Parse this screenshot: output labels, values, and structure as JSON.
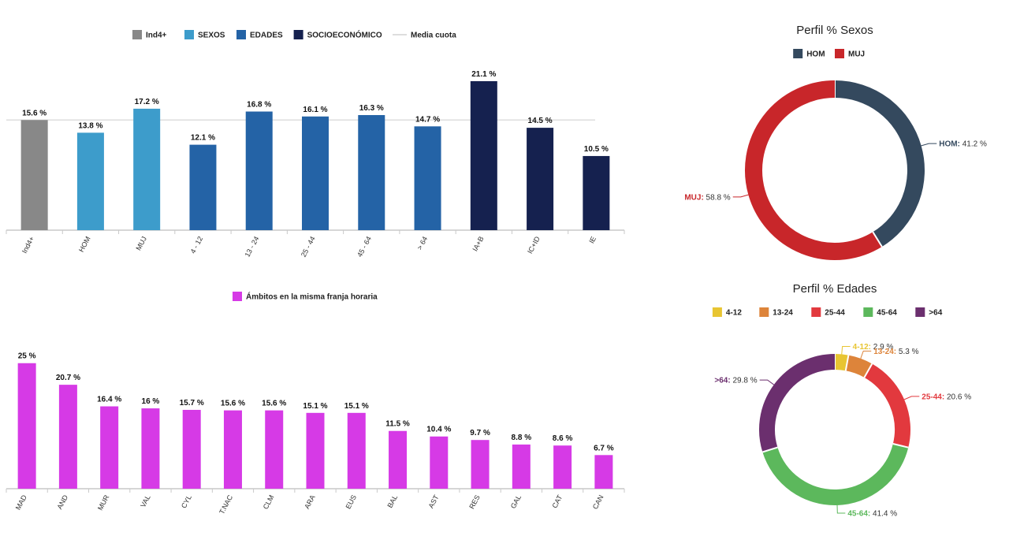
{
  "chart_data": [
    {
      "type": "bar",
      "legend": [
        {
          "label": "Ind4+",
          "color": "#888888"
        },
        {
          "label": "SEXOS",
          "color": "#3d9ccb"
        },
        {
          "label": "EDADES",
          "color": "#2463a6"
        },
        {
          "label": "SOCIOECONÓMICO",
          "color": "#15214f"
        },
        {
          "label": "Media cuota",
          "color": "#dddddd",
          "kind": "line"
        }
      ],
      "categories": [
        "Ind4+",
        "HOM",
        "MUJ",
        "4 - 12",
        "13 - 24",
        "25 - 44",
        "45 - 64",
        "> 64",
        "IA+B",
        "IC+ID",
        "IE"
      ],
      "values": [
        15.6,
        13.8,
        17.2,
        12.1,
        16.8,
        16.1,
        16.3,
        14.7,
        21.1,
        14.5,
        10.5
      ],
      "value_labels": [
        "15.6 %",
        "13.8 %",
        "17.2 %",
        "12.1 %",
        "16.8 %",
        "16.1 %",
        "16.3 %",
        "14.7 %",
        "21.1 %",
        "14.5 %",
        "10.5 %"
      ],
      "colors": [
        "#888888",
        "#3d9ccb",
        "#3d9ccb",
        "#2463a6",
        "#2463a6",
        "#2463a6",
        "#2463a6",
        "#2463a6",
        "#15214f",
        "#15214f",
        "#15214f"
      ],
      "reference_line": {
        "label": "Media cuota",
        "value": 15.6
      },
      "ylim": [
        0,
        24
      ],
      "grid": false
    },
    {
      "type": "bar",
      "legend": [
        {
          "label": "Ámbitos en la misma franja horaria",
          "color": "#d63ae6"
        }
      ],
      "categories": [
        "MAD",
        "AND",
        "MUR",
        "VAL",
        "CYL",
        "T.NAC",
        "CLM",
        "ARA",
        "EUS",
        "BAL",
        "AST",
        "RES",
        "GAL",
        "CAT",
        "CAN"
      ],
      "values": [
        25,
        20.7,
        16.4,
        16,
        15.7,
        15.6,
        15.6,
        15.1,
        15.1,
        11.5,
        10.4,
        9.7,
        8.8,
        8.6,
        6.7
      ],
      "value_labels": [
        "25 %",
        "20.7 %",
        "16.4 %",
        "16 %",
        "15.7 %",
        "15.6 %",
        "15.6 %",
        "15.1 %",
        "15.1 %",
        "11.5 %",
        "10.4 %",
        "9.7 %",
        "8.8 %",
        "8.6 %",
        "6.7 %"
      ],
      "color": "#d63ae6",
      "ylim": [
        0,
        27
      ],
      "grid": false
    },
    {
      "type": "pie",
      "title": "Perfil % Sexos",
      "slices": [
        {
          "label": "HOM",
          "value": 41.2,
          "value_text": "41.2 %",
          "color": "#34495e"
        },
        {
          "label": "MUJ",
          "value": 58.8,
          "value_text": "58.8 %",
          "color": "#c8262a"
        }
      ]
    },
    {
      "type": "pie",
      "title": "Perfil % Edades",
      "slices": [
        {
          "label": "4-12",
          "value": 2.9,
          "value_text": "2.9 %",
          "color": "#e8c532"
        },
        {
          "label": "13-24",
          "value": 5.3,
          "value_text": "5.3 %",
          "color": "#dd843a"
        },
        {
          "label": "25-44",
          "value": 20.6,
          "value_text": "20.6 %",
          "color": "#e2393e"
        },
        {
          "label": "45-64",
          "value": 41.4,
          "value_text": "41.4 %",
          "color": "#5cb85c"
        },
        {
          "label": ">64",
          "value": 29.8,
          "value_text": "29.8 %",
          "color": "#6b2f6e"
        }
      ]
    }
  ]
}
